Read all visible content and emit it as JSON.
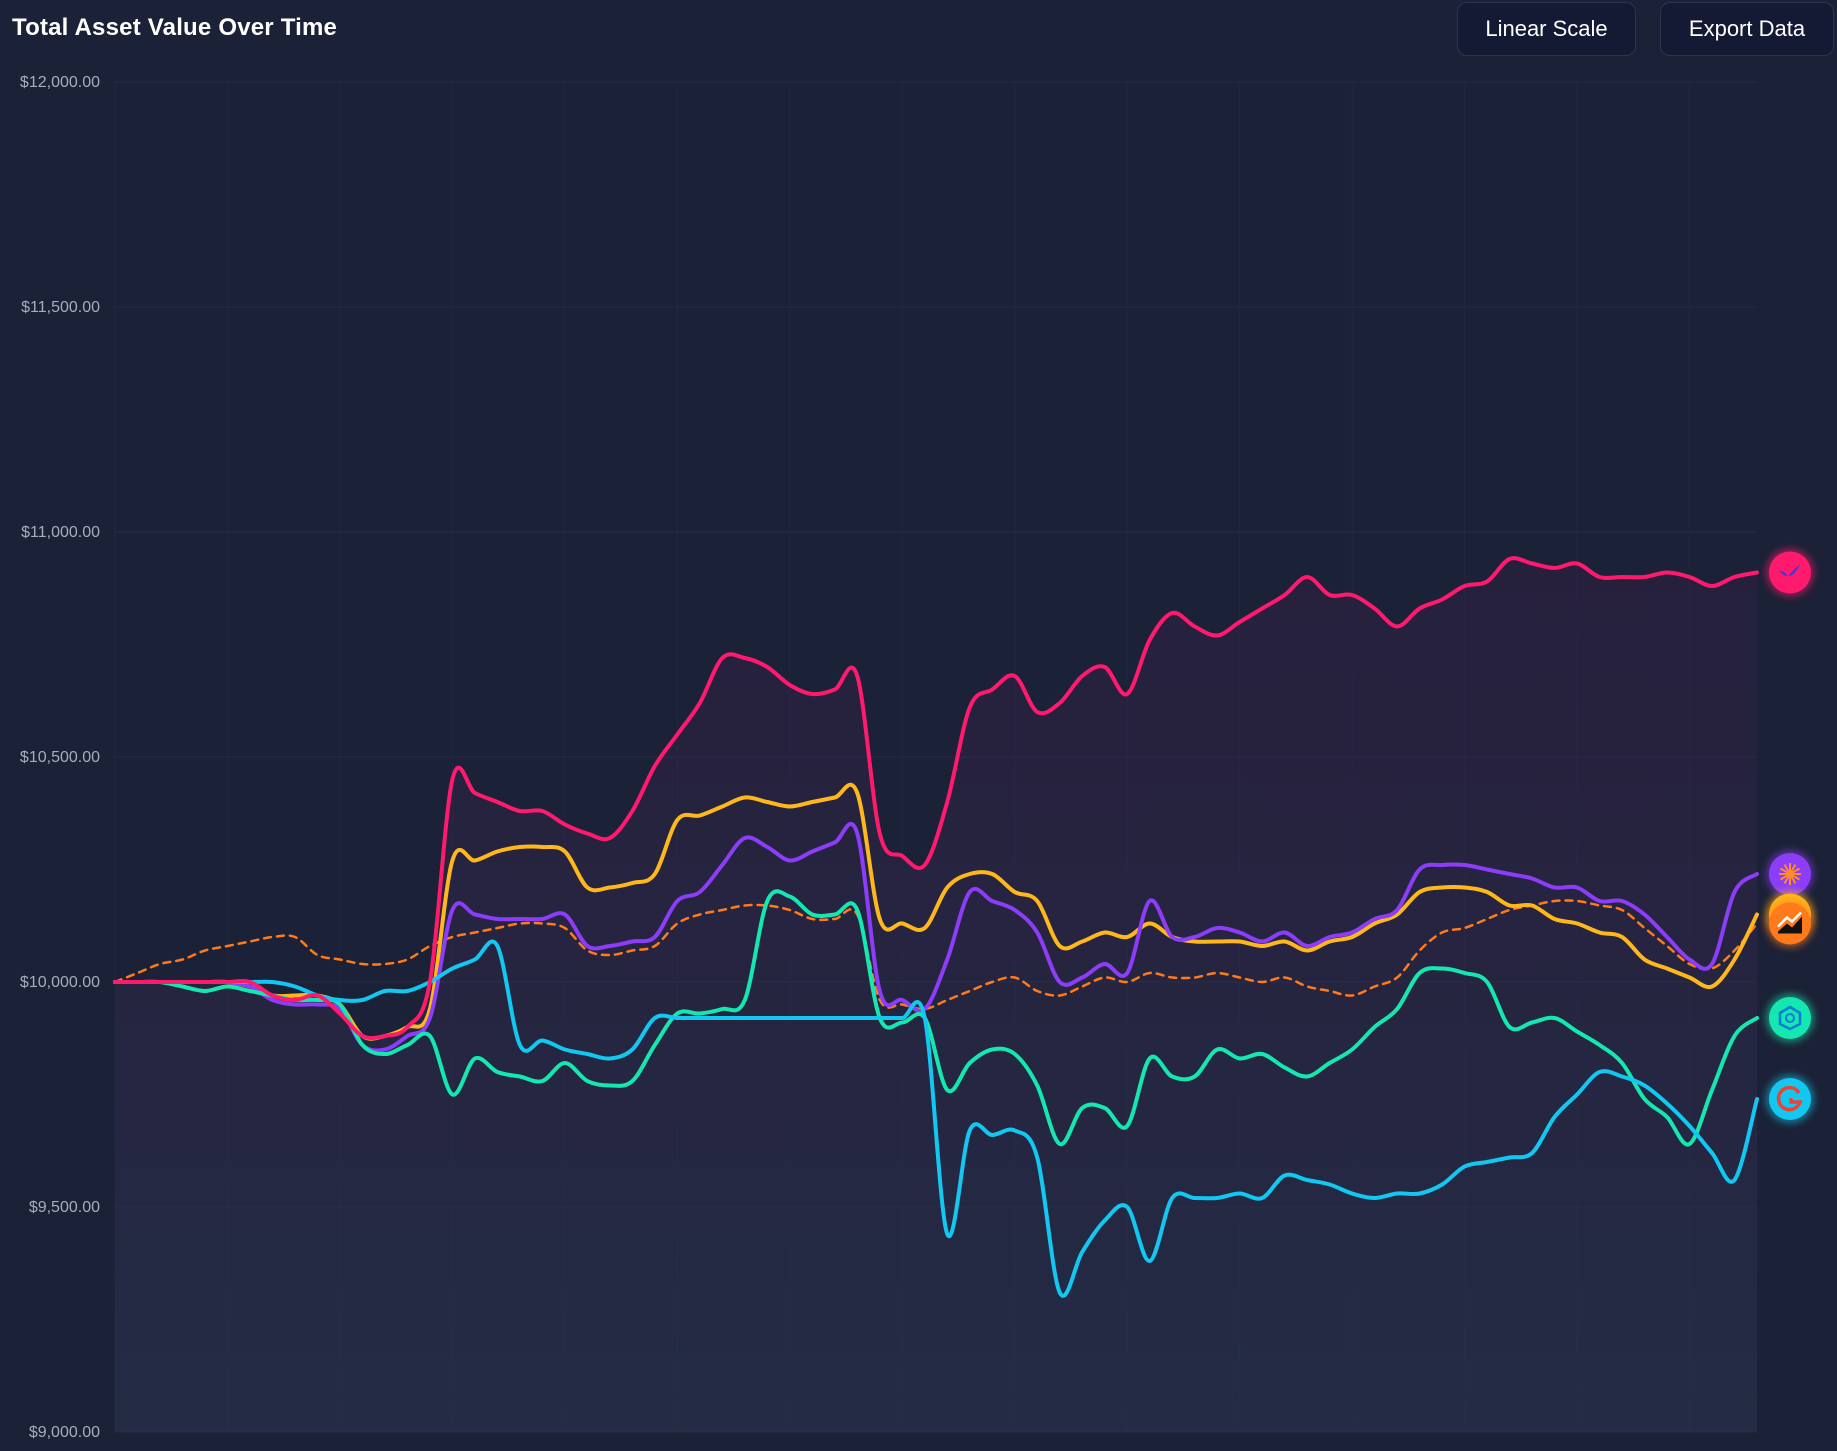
{
  "header": {
    "title": "Total Asset Value Over Time",
    "buttons": [
      {
        "label": "Linear Scale"
      },
      {
        "label": "Export Data"
      }
    ]
  },
  "colors": {
    "background": "#1b2136",
    "button_bg": "#141a33",
    "grid": "#252c45",
    "tick_text": "#a7adbd"
  },
  "chart_data": {
    "type": "line",
    "title": "Total Asset Value Over Time",
    "xlabel": "",
    "ylabel": "",
    "ylim": [
      9000,
      12000
    ],
    "yticks": [
      9000,
      9500,
      10000,
      10500,
      11000,
      11500,
      12000
    ],
    "ytick_labels": [
      "$9,000.00",
      "$9,500.00",
      "$10,000.00",
      "$10,500.00",
      "$11,000.00",
      "$11,500.00",
      "$12,000.00"
    ],
    "grid": true,
    "x": [
      0,
      2,
      4,
      6,
      8,
      10,
      12,
      14,
      16,
      18,
      20,
      22,
      24,
      26,
      28,
      30,
      32,
      34,
      36,
      38,
      40,
      42,
      44,
      46,
      48,
      50,
      52,
      54,
      56,
      58,
      60,
      62,
      64,
      66,
      68,
      70,
      72,
      74,
      76,
      78,
      80,
      82,
      84,
      86,
      88,
      90,
      92,
      94,
      96,
      98,
      100,
      102,
      104,
      106,
      108,
      110,
      112,
      114,
      116,
      118,
      120,
      122,
      124,
      126,
      128,
      130,
      132,
      134,
      136,
      138,
      140,
      142,
      144,
      146
    ],
    "series": [
      {
        "icon": "bird-icon",
        "color": "#ff1a6e",
        "dashed": false,
        "values": [
          10000,
          10000,
          10000,
          10000,
          10000,
          10000,
          10000,
          9970,
          9960,
          9970,
          9930,
          9880,
          9880,
          9900,
          10000,
          10450,
          10420,
          10400,
          10380,
          10380,
          10350,
          10330,
          10320,
          10380,
          10480,
          10550,
          10620,
          10720,
          10720,
          10700,
          10660,
          10640,
          10650,
          10680,
          10330,
          10280,
          10260,
          10400,
          10610,
          10650,
          10680,
          10600,
          10620,
          10680,
          10700,
          10640,
          10760,
          10820,
          10790,
          10770,
          10800,
          10830,
          10860,
          10900,
          10860,
          10860,
          10830,
          10790,
          10830,
          10850,
          10880,
          10890,
          10940,
          10930,
          10920,
          10930,
          10900,
          10900,
          10900,
          10910,
          10900,
          10880,
          10900,
          10910
        ]
      },
      {
        "icon": "sun-icon",
        "color": "#8b3df7",
        "dashed": false,
        "values": [
          10000,
          10000,
          10000,
          10000,
          10000,
          10000,
          9990,
          9960,
          9950,
          9950,
          9940,
          9860,
          9850,
          9880,
          9920,
          10160,
          10150,
          10140,
          10140,
          10140,
          10150,
          10080,
          10080,
          10090,
          10100,
          10180,
          10200,
          10260,
          10320,
          10300,
          10270,
          10290,
          10310,
          10330,
          9980,
          9960,
          9940,
          10050,
          10200,
          10180,
          10160,
          10110,
          10000,
          10010,
          10040,
          10020,
          10180,
          10100,
          10100,
          10120,
          10110,
          10090,
          10110,
          10080,
          10100,
          10110,
          10140,
          10160,
          10250,
          10260,
          10260,
          10250,
          10240,
          10230,
          10210,
          10210,
          10180,
          10180,
          10150,
          10100,
          10050,
          10040,
          10200,
          10240
        ]
      },
      {
        "icon": "sparkle-icon",
        "color": "#ffb81c",
        "dashed": false,
        "values": [
          10000,
          10000,
          10000,
          10000,
          10000,
          10000,
          9990,
          9970,
          9970,
          9970,
          9950,
          9880,
          9880,
          9900,
          9940,
          10270,
          10270,
          10290,
          10300,
          10300,
          10290,
          10210,
          10210,
          10220,
          10240,
          10360,
          10370,
          10390,
          10410,
          10400,
          10390,
          10400,
          10410,
          10420,
          10140,
          10130,
          10120,
          10210,
          10240,
          10240,
          10200,
          10180,
          10080,
          10090,
          10110,
          10100,
          10130,
          10100,
          10090,
          10090,
          10090,
          10080,
          10090,
          10070,
          10090,
          10100,
          10130,
          10150,
          10200,
          10210,
          10210,
          10200,
          10170,
          10170,
          10140,
          10130,
          10110,
          10100,
          10050,
          10030,
          10010,
          9990,
          10050,
          10150
        ]
      },
      {
        "icon": "trend-icon",
        "color": "#ff7a1a",
        "dashed": true,
        "values": [
          10000,
          10020,
          10040,
          10050,
          10070,
          10080,
          10090,
          10100,
          10100,
          10060,
          10050,
          10040,
          10040,
          10050,
          10080,
          10100,
          10110,
          10120,
          10130,
          10130,
          10120,
          10070,
          10060,
          10070,
          10080,
          10130,
          10150,
          10160,
          10170,
          10170,
          10160,
          10140,
          10140,
          10150,
          9960,
          9950,
          9940,
          9960,
          9980,
          10000,
          10010,
          9980,
          9970,
          9990,
          10010,
          10000,
          10020,
          10010,
          10010,
          10020,
          10010,
          10000,
          10010,
          9990,
          9980,
          9970,
          9990,
          10010,
          10070,
          10110,
          10120,
          10140,
          10160,
          10170,
          10180,
          10180,
          10170,
          10160,
          10120,
          10080,
          10040,
          10030,
          10070,
          10130
        ]
      },
      {
        "icon": "openai-icon",
        "color": "#14e8b0",
        "dashed": false,
        "values": [
          10000,
          10000,
          10000,
          9990,
          9980,
          9990,
          9980,
          9970,
          9960,
          9960,
          9950,
          9860,
          9840,
          9860,
          9880,
          9750,
          9830,
          9800,
          9790,
          9780,
          9820,
          9780,
          9770,
          9780,
          9860,
          9930,
          9930,
          9940,
          9960,
          10180,
          10190,
          10150,
          10150,
          10160,
          9920,
          9910,
          9920,
          9760,
          9820,
          9850,
          9840,
          9770,
          9640,
          9720,
          9720,
          9680,
          9830,
          9790,
          9790,
          9850,
          9830,
          9840,
          9810,
          9790,
          9820,
          9850,
          9900,
          9940,
          10020,
          10030,
          10020,
          10000,
          9900,
          9910,
          9920,
          9890,
          9860,
          9820,
          9740,
          9700,
          9640,
          9760,
          9880,
          9920
        ]
      },
      {
        "icon": "google-icon",
        "color": "#12c8f0",
        "dashed": false,
        "values": [
          10000,
          10000,
          10000,
          10000,
          10000,
          10000,
          10000,
          10000,
          9990,
          9970,
          9960,
          9960,
          9980,
          9980,
          10000,
          10030,
          10050,
          10080,
          9860,
          9870,
          9850,
          9840,
          9830,
          9850,
          9920,
          9920,
          9920,
          9920,
          9920,
          9920,
          9920,
          9920,
          9920,
          9920,
          9920,
          9920,
          9920,
          9440,
          9670,
          9660,
          9670,
          9610,
          9310,
          9400,
          9470,
          9500,
          9380,
          9520,
          9520,
          9520,
          9530,
          9520,
          9570,
          9560,
          9550,
          9530,
          9520,
          9530,
          9530,
          9550,
          9590,
          9600,
          9610,
          9620,
          9700,
          9750,
          9800,
          9790,
          9770,
          9730,
          9680,
          9620,
          9560,
          9740
        ]
      }
    ]
  }
}
